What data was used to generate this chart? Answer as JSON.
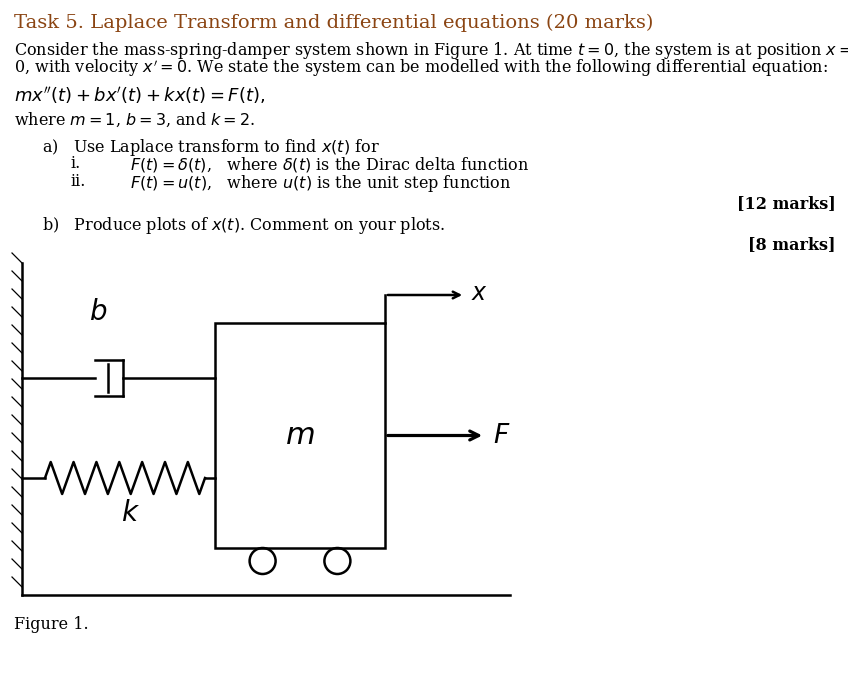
{
  "title": "Task 5. Laplace Transform and differential equations (20 marks)",
  "title_color": "#8B4513",
  "bg_color": "#ffffff",
  "text_color": "#000000",
  "figure_label": "Figure 1.",
  "marks_a": "[12 marks]",
  "marks_b": "[8 marks]"
}
